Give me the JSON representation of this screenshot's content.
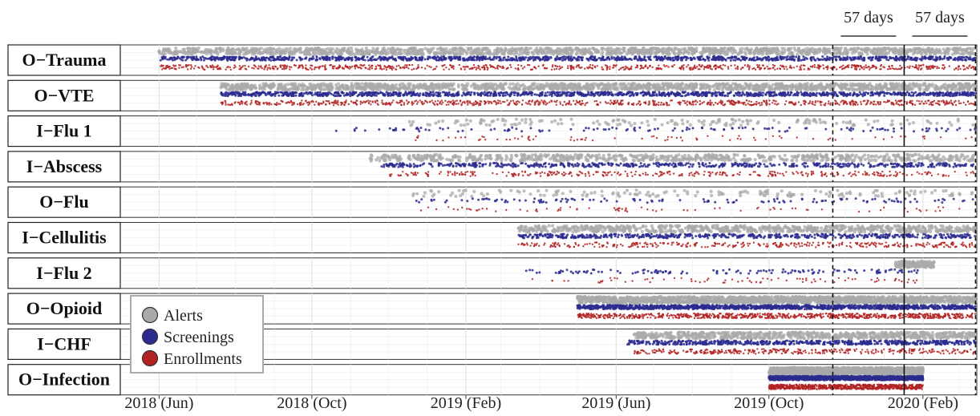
{
  "chart_data": {
    "type": "scatter",
    "x_axis": {
      "range": [
        "2018-05-01",
        "2020-03-15"
      ],
      "ticks": [
        {
          "date": "2018-06-01",
          "label": "2018 (Jun)"
        },
        {
          "date": "2018-10-01",
          "label": "2018 (Oct)"
        },
        {
          "date": "2019-02-01",
          "label": "2019 (Feb)"
        },
        {
          "date": "2019-06-01",
          "label": "2019 (Jun)"
        },
        {
          "date": "2019-10-01",
          "label": "2019 (Oct)"
        },
        {
          "date": "2020-02-01",
          "label": "2020 (Feb)"
        }
      ]
    },
    "grid": true,
    "legend": {
      "placement": "bottom-left",
      "entries": [
        {
          "name": "Alerts",
          "color": "#a9a9a9"
        },
        {
          "name": "Screenings",
          "color": "#2b2b8f"
        },
        {
          "name": "Enrollments",
          "color": "#b22222"
        }
      ]
    },
    "reference_lines": [
      {
        "date": "2019-11-21",
        "style": "dashed"
      },
      {
        "date": "2020-01-17",
        "style": "solid"
      },
      {
        "date": "2020-03-14",
        "style": "dashed"
      }
    ],
    "annotations": [
      {
        "label": "57 days",
        "from": "2019-11-21",
        "to": "2020-01-17"
      },
      {
        "label": "57 days",
        "from": "2020-01-17",
        "to": "2020-03-14"
      }
    ],
    "panels": [
      {
        "name": "O−Trauma",
        "alerts": [
          "2018-06-01",
          "2020-03-14"
        ],
        "screenings": [
          "2018-06-01",
          "2020-03-14"
        ],
        "enrollments": [
          "2018-06-01",
          "2020-03-14"
        ],
        "density": "high"
      },
      {
        "name": "O−VTE",
        "alerts": [
          "2018-07-20",
          "2020-03-14"
        ],
        "screenings": [
          "2018-07-20",
          "2020-03-14"
        ],
        "enrollments": [
          "2018-07-20",
          "2020-03-14"
        ],
        "density": "high"
      },
      {
        "name": "I−Flu 1",
        "alerts": [
          "2018-12-15",
          "2020-03-14"
        ],
        "screenings": [
          "2018-10-20",
          "2020-03-14"
        ],
        "enrollments": [
          "2018-12-15",
          "2020-03-14"
        ],
        "density": "sparse"
      },
      {
        "name": "I−Abscess",
        "alerts": [
          "2018-11-15",
          "2020-03-14"
        ],
        "screenings": [
          "2018-11-25",
          "2020-03-14"
        ],
        "enrollments": [
          "2018-12-01",
          "2020-03-14"
        ],
        "density": "medium"
      },
      {
        "name": "O−Flu",
        "alerts": [
          "2018-12-20",
          "2020-03-14"
        ],
        "screenings": [
          "2018-12-20",
          "2020-03-14"
        ],
        "enrollments": [
          "2018-12-20",
          "2020-03-14"
        ],
        "density": "sparse"
      },
      {
        "name": "I−Cellulitis",
        "alerts": [
          "2019-03-15",
          "2020-03-14"
        ],
        "screenings": [
          "2019-03-15",
          "2020-03-14"
        ],
        "enrollments": [
          "2019-03-15",
          "2020-03-14"
        ],
        "density": "medium"
      },
      {
        "name": "I−Flu 2",
        "alerts": [
          "2020-01-10",
          "2020-02-10"
        ],
        "screenings": [
          "2019-03-20",
          "2020-02-01"
        ],
        "enrollments": [
          "2019-03-20",
          "2020-02-01"
        ],
        "density": "sparse"
      },
      {
        "name": "O−Opioid",
        "alerts": [
          "2019-05-01",
          "2020-03-14"
        ],
        "screenings": [
          "2019-05-01",
          "2020-03-14"
        ],
        "enrollments": [
          "2019-05-01",
          "2020-03-14"
        ],
        "density": "high"
      },
      {
        "name": "I−CHF",
        "alerts": [
          "2019-06-15",
          "2020-03-14"
        ],
        "screenings": [
          "2019-06-10",
          "2020-03-14"
        ],
        "enrollments": [
          "2019-06-15",
          "2020-03-14"
        ],
        "density": "medium"
      },
      {
        "name": "O−Infection",
        "alerts": [
          "2019-10-01",
          "2020-02-01"
        ],
        "screenings": [
          "2019-10-01",
          "2020-02-01"
        ],
        "enrollments": [
          "2019-10-01",
          "2020-02-01"
        ],
        "density": "high"
      }
    ]
  }
}
